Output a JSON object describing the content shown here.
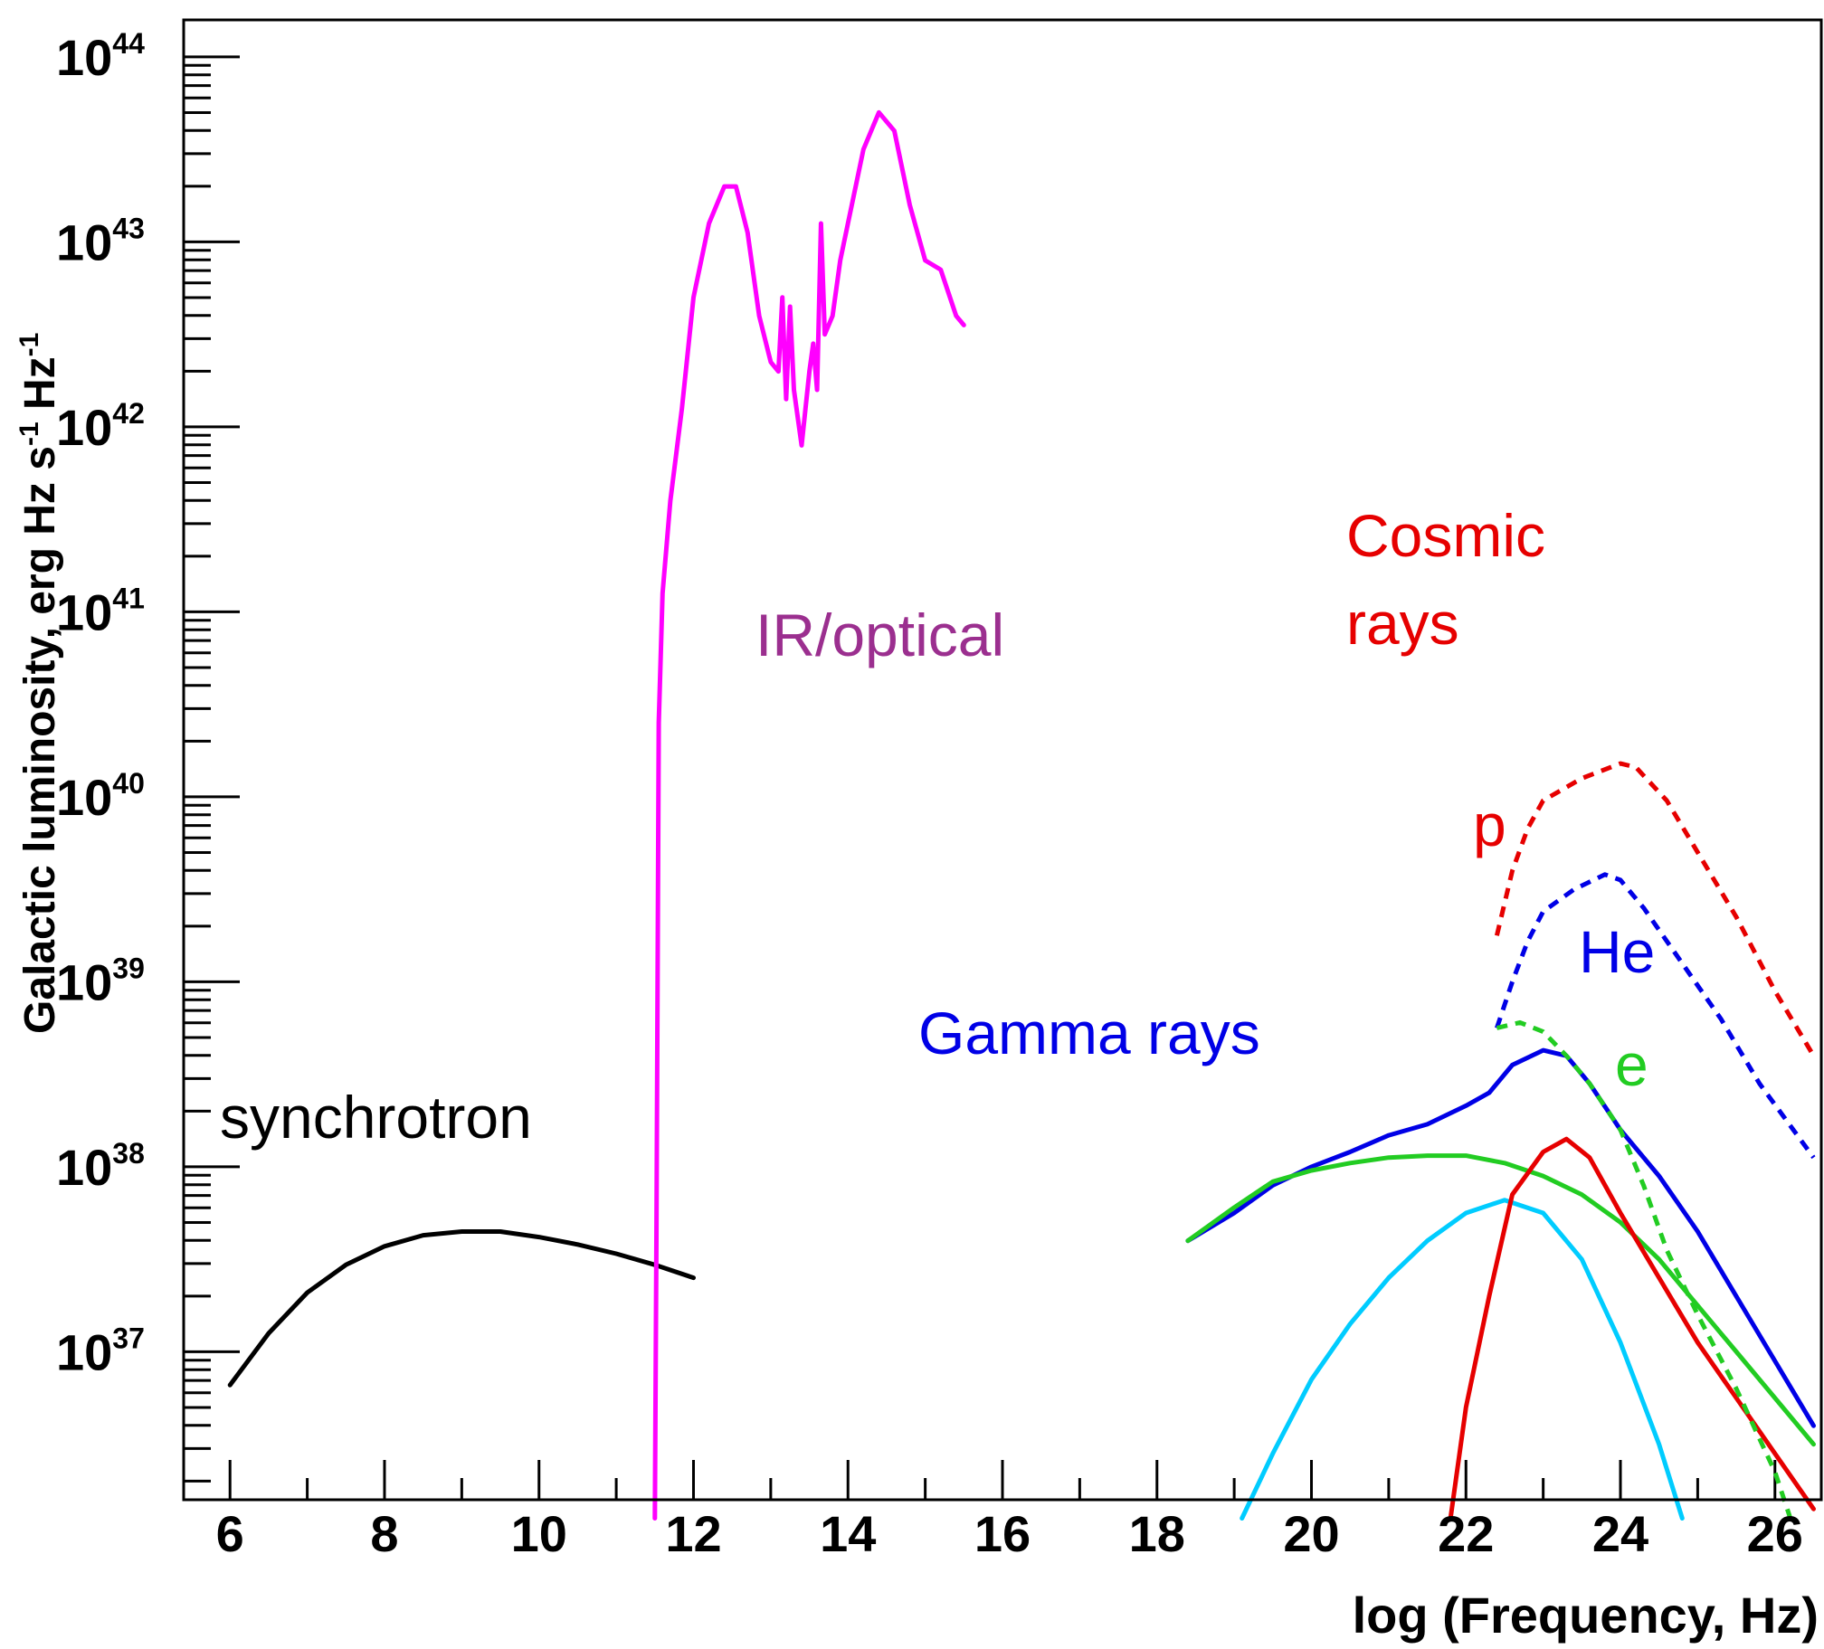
{
  "chart_data": {
    "type": "line",
    "xlabel": "log (Frequency, Hz)",
    "ylabel": "Galactic luminosity, erg Hz s⁻¹ Hz⁻¹",
    "xlim": [
      5.4,
      26.6
    ],
    "ylim": [
      36.2,
      44.2
    ],
    "log_y": true,
    "grid": false,
    "x_ticks": [
      6,
      8,
      10,
      12,
      14,
      16,
      18,
      20,
      22,
      24,
      26
    ],
    "y_ticks": [
      {
        "value": 37,
        "base": "10",
        "exp": "37"
      },
      {
        "value": 38,
        "base": "10",
        "exp": "38"
      },
      {
        "value": 39,
        "base": "10",
        "exp": "39"
      },
      {
        "value": 40,
        "base": "10",
        "exp": "40"
      },
      {
        "value": 41,
        "base": "10",
        "exp": "41"
      },
      {
        "value": 42,
        "base": "10",
        "exp": "42"
      },
      {
        "value": 43,
        "base": "10",
        "exp": "43"
      },
      {
        "value": 44,
        "base": "10",
        "exp": "44"
      }
    ],
    "annotations": [
      {
        "id": "synchrotron",
        "text": "synchrotron",
        "color": "#000000"
      },
      {
        "id": "iroptical",
        "text": "IR/optical",
        "color": "#9b2f8f"
      },
      {
        "id": "gamma",
        "text": "Gamma rays",
        "color": "#0000e6"
      },
      {
        "id": "cosmic1",
        "text": "Cosmic",
        "color": "#e60000"
      },
      {
        "id": "cosmic2",
        "text": "rays",
        "color": "#e60000"
      },
      {
        "id": "p",
        "text": "p",
        "color": "#e60000"
      },
      {
        "id": "he",
        "text": "He",
        "color": "#0000e6"
      },
      {
        "id": "e",
        "text": "e",
        "color": "#22cc22"
      }
    ],
    "series": [
      {
        "key": "synchrotron",
        "color": "#000000",
        "dashed": false,
        "x": [
          6,
          6.5,
          7,
          7.5,
          8,
          8.5,
          9,
          9.5,
          10,
          10.5,
          11,
          11.5,
          12
        ],
        "y": [
          36.82,
          37.1,
          37.32,
          37.47,
          37.57,
          37.63,
          37.65,
          37.65,
          37.62,
          37.58,
          37.53,
          37.47,
          37.4
        ]
      },
      {
        "key": "ir-optical",
        "color": "#ff00ff",
        "dashed": false,
        "x": [
          11.5,
          11.52,
          11.55,
          11.6,
          11.7,
          11.85,
          12.0,
          12.2,
          12.4,
          12.55,
          12.7,
          12.85,
          13.0,
          13.1,
          13.15,
          13.2,
          13.25,
          13.3,
          13.4,
          13.5,
          13.55,
          13.6,
          13.65,
          13.7,
          13.8,
          13.9,
          14.0,
          14.2,
          14.4,
          14.6,
          14.8,
          15.0,
          15.2,
          15.4,
          15.5
        ],
        "y": [
          36.1,
          37.6,
          40.4,
          41.1,
          41.6,
          42.1,
          42.7,
          43.1,
          43.3,
          43.3,
          43.05,
          42.6,
          42.35,
          42.3,
          42.7,
          42.15,
          42.65,
          42.2,
          41.9,
          42.3,
          42.45,
          42.2,
          43.1,
          42.5,
          42.6,
          42.9,
          43.1,
          43.5,
          43.7,
          43.6,
          43.2,
          42.9,
          42.85,
          42.6,
          42.55
        ]
      },
      {
        "key": "gamma-total",
        "color": "#0000e6",
        "dashed": false,
        "x": [
          18.4,
          19,
          19.5,
          20,
          20.5,
          21,
          21.5,
          22,
          22.3,
          22.6,
          23,
          23.3,
          23.6,
          24,
          24.5,
          25,
          25.5,
          26,
          26.5
        ],
        "y": [
          37.6,
          37.75,
          37.9,
          38.0,
          38.08,
          38.17,
          38.23,
          38.33,
          38.4,
          38.55,
          38.63,
          38.6,
          38.45,
          38.2,
          37.95,
          37.65,
          37.3,
          36.95,
          36.6
        ]
      },
      {
        "key": "gamma-green",
        "color": "#22cc22",
        "dashed": false,
        "x": [
          18.4,
          19,
          19.5,
          20,
          20.5,
          21,
          21.5,
          22,
          22.5,
          23,
          23.5,
          24,
          24.5,
          25,
          25.5,
          26,
          26.5
        ],
        "y": [
          37.6,
          37.78,
          37.92,
          37.98,
          38.02,
          38.05,
          38.06,
          38.06,
          38.02,
          37.95,
          37.85,
          37.7,
          37.5,
          37.25,
          37.0,
          36.75,
          36.5
        ]
      },
      {
        "key": "gamma-cyan",
        "color": "#00ccff",
        "dashed": false,
        "x": [
          19.1,
          19.5,
          20,
          20.5,
          21,
          21.5,
          22,
          22.5,
          23,
          23.5,
          24,
          24.5,
          24.8
        ],
        "y": [
          36.1,
          36.45,
          36.85,
          37.15,
          37.4,
          37.6,
          37.75,
          37.82,
          37.75,
          37.5,
          37.05,
          36.5,
          36.1
        ]
      },
      {
        "key": "gamma-red",
        "color": "#e60000",
        "dashed": false,
        "x": [
          21.8,
          22.0,
          22.3,
          22.6,
          23.0,
          23.3,
          23.6,
          24.0,
          24.5,
          25.0,
          25.5,
          26.0,
          26.5
        ],
        "y": [
          36.1,
          36.7,
          37.3,
          37.85,
          38.08,
          38.15,
          38.05,
          37.75,
          37.4,
          37.05,
          36.75,
          36.45,
          36.15
        ]
      },
      {
        "key": "cr-p",
        "color": "#e60000",
        "dashed": true,
        "x": [
          22.4,
          22.6,
          22.8,
          23.0,
          23.5,
          24.0,
          24.2,
          24.6,
          25.0,
          25.5,
          26.0,
          26.5
        ],
        "y": [
          39.25,
          39.6,
          39.83,
          39.98,
          40.1,
          40.18,
          40.16,
          39.98,
          39.7,
          39.35,
          38.95,
          38.6
        ]
      },
      {
        "key": "cr-he",
        "color": "#0000e6",
        "dashed": true,
        "x": [
          22.4,
          22.6,
          22.8,
          23.0,
          23.4,
          23.8,
          24.0,
          24.3,
          24.8,
          25.3,
          25.8,
          26.5
        ],
        "y": [
          38.75,
          39.0,
          39.22,
          39.38,
          39.5,
          39.58,
          39.55,
          39.4,
          39.1,
          38.8,
          38.45,
          38.05
        ]
      },
      {
        "key": "cr-e",
        "color": "#22cc22",
        "dashed": true,
        "x": [
          22.4,
          22.7,
          23.0,
          23.3,
          23.6,
          24.0,
          24.3,
          24.6,
          25.0,
          25.5,
          26.0,
          26.2
        ],
        "y": [
          38.75,
          38.78,
          38.73,
          38.6,
          38.45,
          38.2,
          37.9,
          37.55,
          37.2,
          36.8,
          36.35,
          36.1
        ]
      }
    ]
  }
}
